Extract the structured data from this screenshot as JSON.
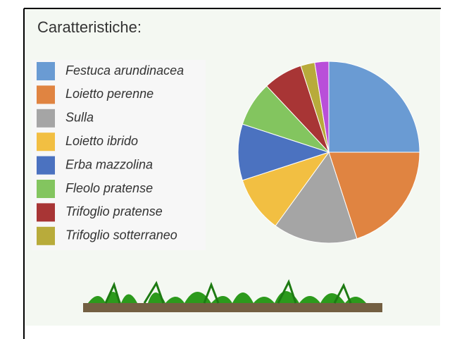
{
  "chart_data": {
    "type": "pie",
    "title": "Caratteristiche:",
    "categories": [
      "Festuca arundinacea",
      "Loietto perenne",
      "Sulla",
      "Loietto ibrido",
      "Erba mazzolina",
      "Fleolo pratense",
      "Trifoglio pratense",
      "Trifoglio sotterraneo",
      null
    ],
    "values": [
      25,
      20,
      15,
      10,
      10,
      8,
      7,
      2.5,
      2.5
    ],
    "colors": [
      "#6a9bd3",
      "#e08441",
      "#a5a5a5",
      "#f2bf42",
      "#4b72c0",
      "#83c55f",
      "#a83535",
      "#b8ab3b",
      "#b94fd9"
    ]
  }
}
